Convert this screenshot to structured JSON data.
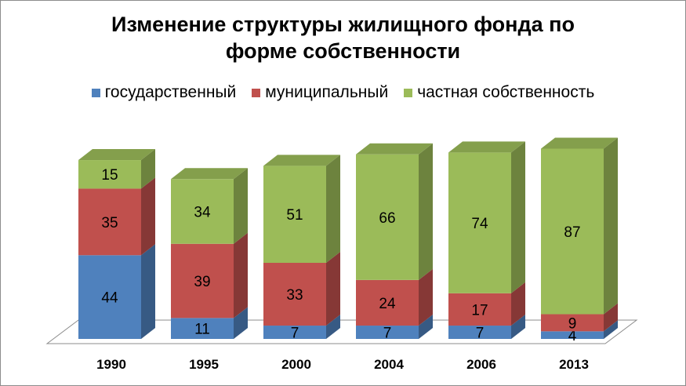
{
  "chart_data": {
    "type": "bar",
    "stacked": true,
    "three_d": true,
    "title_lines": [
      "Изменение структуры жилищного фонда по",
      "форме собственности"
    ],
    "categories": [
      "1990",
      "1995",
      "2000",
      "2004",
      "2006",
      "2013"
    ],
    "series": [
      {
        "name": "государственный",
        "color": "#4f81bd",
        "values": [
          44,
          11,
          7,
          7,
          7,
          4
        ]
      },
      {
        "name": "муниципальный",
        "color": "#c0504d",
        "values": [
          35,
          39,
          33,
          24,
          17,
          9
        ]
      },
      {
        "name": "частная собственность",
        "color": "#9bbb59",
        "values": [
          15,
          34,
          51,
          66,
          74,
          87
        ]
      }
    ],
    "legend_position": "top",
    "grid": false
  }
}
